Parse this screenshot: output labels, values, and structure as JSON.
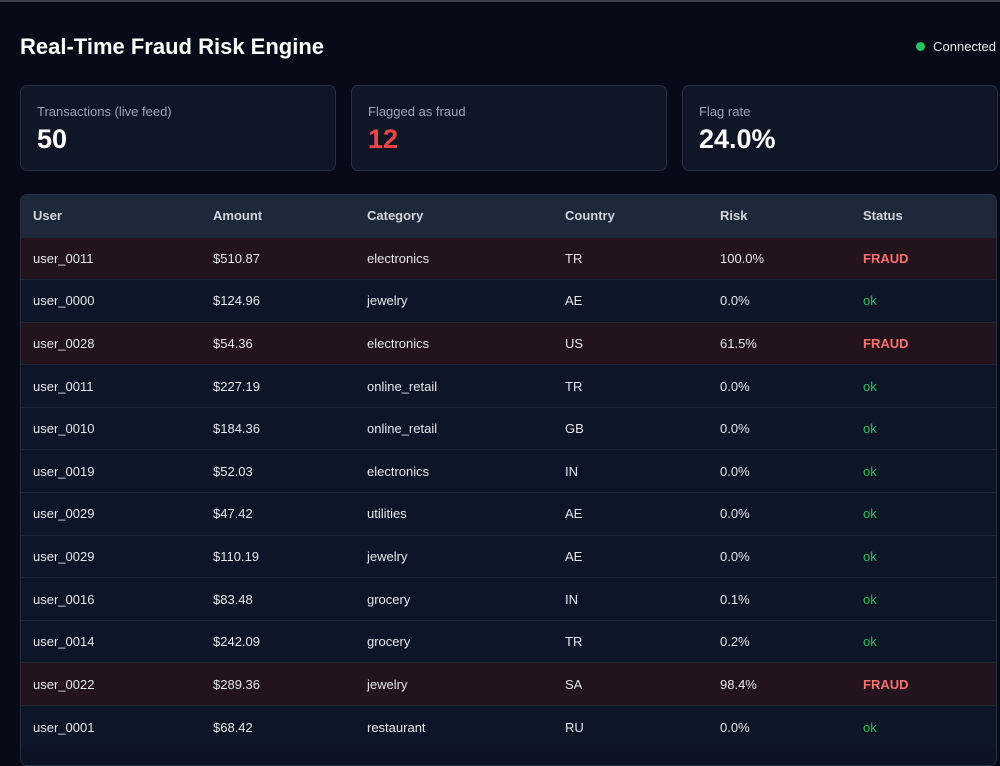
{
  "header": {
    "title": "Real-Time Fraud Risk Engine",
    "connection_status": "Connected",
    "connection_color": "#22c55e"
  },
  "stats": {
    "transactions_label": "Transactions (live feed)",
    "transactions_value": "50",
    "flagged_label": "Flagged as fraud",
    "flagged_value": "12",
    "flag_rate_label": "Flag rate",
    "flag_rate_value": "24.0%"
  },
  "table": {
    "columns": [
      "User",
      "Amount",
      "Category",
      "Country",
      "Risk",
      "Status"
    ],
    "rows": [
      {
        "user": "user_0011",
        "amount": "$510.87",
        "category": "electronics",
        "country": "TR",
        "risk": "100.0%",
        "status": "FRAUD"
      },
      {
        "user": "user_0000",
        "amount": "$124.96",
        "category": "jewelry",
        "country": "AE",
        "risk": "0.0%",
        "status": "ok"
      },
      {
        "user": "user_0028",
        "amount": "$54.36",
        "category": "electronics",
        "country": "US",
        "risk": "61.5%",
        "status": "FRAUD"
      },
      {
        "user": "user_0011",
        "amount": "$227.19",
        "category": "online_retail",
        "country": "TR",
        "risk": "0.0%",
        "status": "ok"
      },
      {
        "user": "user_0010",
        "amount": "$184.36",
        "category": "online_retail",
        "country": "GB",
        "risk": "0.0%",
        "status": "ok"
      },
      {
        "user": "user_0019",
        "amount": "$52.03",
        "category": "electronics",
        "country": "IN",
        "risk": "0.0%",
        "status": "ok"
      },
      {
        "user": "user_0029",
        "amount": "$47.42",
        "category": "utilities",
        "country": "AE",
        "risk": "0.0%",
        "status": "ok"
      },
      {
        "user": "user_0029",
        "amount": "$110.19",
        "category": "jewelry",
        "country": "AE",
        "risk": "0.0%",
        "status": "ok"
      },
      {
        "user": "user_0016",
        "amount": "$83.48",
        "category": "grocery",
        "country": "IN",
        "risk": "0.1%",
        "status": "ok"
      },
      {
        "user": "user_0014",
        "amount": "$242.09",
        "category": "grocery",
        "country": "TR",
        "risk": "0.2%",
        "status": "ok"
      },
      {
        "user": "user_0022",
        "amount": "$289.36",
        "category": "jewelry",
        "country": "SA",
        "risk": "98.4%",
        "status": "FRAUD"
      },
      {
        "user": "user_0001",
        "amount": "$68.42",
        "category": "restaurant",
        "country": "RU",
        "risk": "0.0%",
        "status": "ok"
      }
    ]
  },
  "colors": {
    "background": "#070b17",
    "fraud": "#f87171",
    "ok": "#22c55e",
    "fraud_row": "#23131c",
    "flagged_value": "#ef4444"
  }
}
